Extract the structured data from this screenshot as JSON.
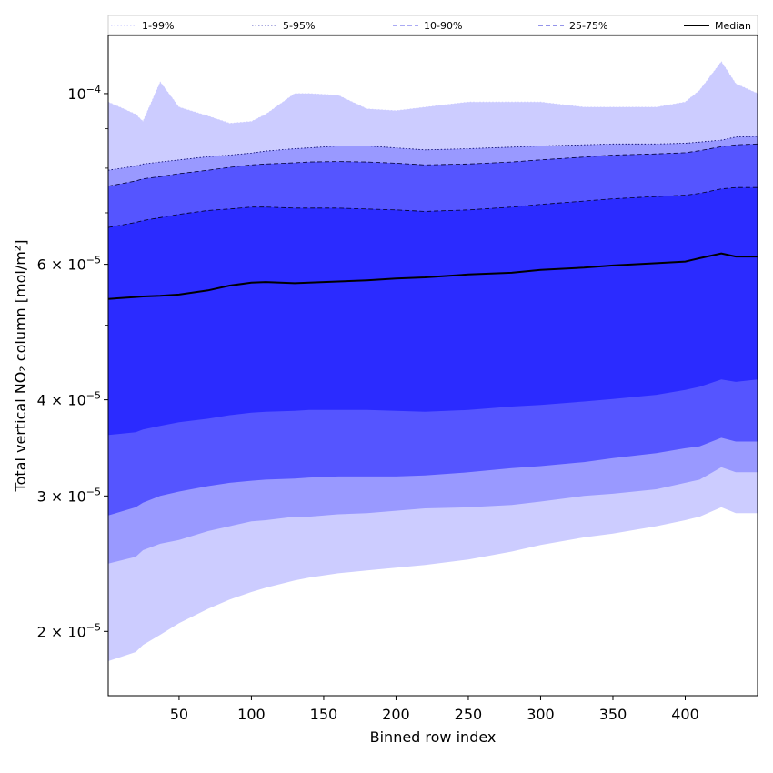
{
  "chart_data": {
    "type": "area",
    "xlabel": "Binned row index",
    "ylabel": "Total vertical NO₂ column [mol/m²]",
    "xlim": [
      1,
      450
    ],
    "ylim": [
      1.65e-05,
      0.000119
    ],
    "y_scale": "log",
    "x_ticks": [
      50,
      100,
      150,
      200,
      250,
      300,
      350,
      400
    ],
    "x_tick_labels": [
      "50",
      "100",
      "150",
      "200",
      "250",
      "300",
      "350",
      "400"
    ],
    "y_ticks": [
      {
        "value": 0.0001,
        "mantissa": "",
        "exponent": "−4",
        "label": "10^-4"
      },
      {
        "value": 6e-05,
        "mantissa": "6 × 10",
        "exponent": "−5",
        "label": "6x10^-5"
      },
      {
        "value": 4e-05,
        "mantissa": "4 × 10",
        "exponent": "−5",
        "label": "4x10^-5"
      },
      {
        "value": 3e-05,
        "mantissa": "3 × 10",
        "exponent": "−5",
        "label": "3x10^-5"
      },
      {
        "value": 2e-05,
        "mantissa": "2 × 10",
        "exponent": "−5",
        "label": "2x10^-5"
      }
    ],
    "x": [
      1,
      20,
      25,
      37,
      50,
      70,
      85,
      100,
      110,
      130,
      140,
      160,
      180,
      200,
      220,
      250,
      280,
      300,
      330,
      350,
      380,
      400,
      410,
      425,
      435,
      450
    ],
    "bands": [
      {
        "name": "1-99%",
        "color": "#ccccff",
        "line_color": "#ccccff",
        "line_style": "dotted",
        "lower": [
          1.83e-05,
          1.88e-05,
          1.92e-05,
          1.98e-05,
          2.05e-05,
          2.14e-05,
          2.2e-05,
          2.25e-05,
          2.28e-05,
          2.33e-05,
          2.35e-05,
          2.38e-05,
          2.4e-05,
          2.42e-05,
          2.44e-05,
          2.48e-05,
          2.54e-05,
          2.59e-05,
          2.65e-05,
          2.68e-05,
          2.74e-05,
          2.79e-05,
          2.82e-05,
          2.9e-05,
          2.85e-05,
          2.85e-05
        ],
        "upper": [
          9.75e-05,
          9.4e-05,
          9.2e-05,
          0.0001035,
          9.6e-05,
          9.35e-05,
          9.15e-05,
          9.2e-05,
          9.4e-05,
          0.0001,
          0.0001,
          9.95e-05,
          9.55e-05,
          9.5e-05,
          9.6e-05,
          9.75e-05,
          9.75e-05,
          9.75e-05,
          9.6e-05,
          9.6e-05,
          9.6e-05,
          9.75e-05,
          0.000101,
          0.00011,
          0.000103,
          0.0001
        ]
      },
      {
        "name": "5-95%",
        "color": "#9999ff",
        "line_color": "#000066",
        "line_style": "dotted",
        "lower": [
          2.45e-05,
          2.5e-05,
          2.55e-05,
          2.6e-05,
          2.63e-05,
          2.7e-05,
          2.74e-05,
          2.78e-05,
          2.79e-05,
          2.82e-05,
          2.82e-05,
          2.84e-05,
          2.85e-05,
          2.87e-05,
          2.89e-05,
          2.9e-05,
          2.92e-05,
          2.95e-05,
          3e-05,
          3.02e-05,
          3.06e-05,
          3.12e-05,
          3.15e-05,
          3.27e-05,
          3.22e-05,
          3.22e-05
        ],
        "upper": [
          7.95e-05,
          8.05e-05,
          8.1e-05,
          8.15e-05,
          8.2e-05,
          8.28e-05,
          8.32e-05,
          8.37e-05,
          8.42e-05,
          8.48e-05,
          8.5e-05,
          8.55e-05,
          8.55e-05,
          8.5e-05,
          8.45e-05,
          8.48e-05,
          8.52e-05,
          8.55e-05,
          8.58e-05,
          8.6e-05,
          8.6e-05,
          8.62e-05,
          8.65e-05,
          8.7e-05,
          8.78e-05,
          8.8e-05
        ]
      },
      {
        "name": "10-90%",
        "color": "#5555ff",
        "line_color": "#000033",
        "line_style": "dashed",
        "lower": [
          2.83e-05,
          2.9e-05,
          2.94e-05,
          3e-05,
          3.04e-05,
          3.09e-05,
          3.12e-05,
          3.14e-05,
          3.15e-05,
          3.16e-05,
          3.17e-05,
          3.18e-05,
          3.18e-05,
          3.18e-05,
          3.19e-05,
          3.22e-05,
          3.26e-05,
          3.28e-05,
          3.32e-05,
          3.36e-05,
          3.41e-05,
          3.46e-05,
          3.48e-05,
          3.57e-05,
          3.53e-05,
          3.53e-05
        ],
        "upper": [
          7.58e-05,
          7.7e-05,
          7.75e-05,
          7.8e-05,
          7.87e-05,
          7.95e-05,
          8.02e-05,
          8.08e-05,
          8.1e-05,
          8.13e-05,
          8.15e-05,
          8.16e-05,
          8.15e-05,
          8.12e-05,
          8.08e-05,
          8.1e-05,
          8.15e-05,
          8.2e-05,
          8.27e-05,
          8.32e-05,
          8.35e-05,
          8.38e-05,
          8.43e-05,
          8.53e-05,
          8.58e-05,
          8.6e-05
        ]
      },
      {
        "name": "25-75%",
        "color": "#2b2bff",
        "line_color": "#000022",
        "line_style": "dashed",
        "lower": [
          3.6e-05,
          3.63e-05,
          3.66e-05,
          3.7e-05,
          3.74e-05,
          3.78e-05,
          3.82e-05,
          3.85e-05,
          3.86e-05,
          3.87e-05,
          3.88e-05,
          3.88e-05,
          3.88e-05,
          3.87e-05,
          3.86e-05,
          3.88e-05,
          3.92e-05,
          3.94e-05,
          3.98e-05,
          4.01e-05,
          4.06e-05,
          4.12e-05,
          4.16e-05,
          4.25e-05,
          4.22e-05,
          4.25e-05
        ],
        "upper": [
          6.7e-05,
          6.8e-05,
          6.84e-05,
          6.9e-05,
          6.97e-05,
          7.05e-05,
          7.08e-05,
          7.12e-05,
          7.12e-05,
          7.1e-05,
          7.1e-05,
          7.1e-05,
          7.08e-05,
          7.06e-05,
          7.03e-05,
          7.06e-05,
          7.12e-05,
          7.18e-05,
          7.25e-05,
          7.3e-05,
          7.35e-05,
          7.38e-05,
          7.42e-05,
          7.52e-05,
          7.55e-05,
          7.55e-05
        ]
      }
    ],
    "median": {
      "name": "Median",
      "color": "#000000",
      "values": [
        5.41e-05,
        5.44e-05,
        5.45e-05,
        5.46e-05,
        5.48e-05,
        5.55e-05,
        5.63e-05,
        5.68e-05,
        5.69e-05,
        5.67e-05,
        5.68e-05,
        5.7e-05,
        5.72e-05,
        5.75e-05,
        5.77e-05,
        5.82e-05,
        5.85e-05,
        5.9e-05,
        5.94e-05,
        5.98e-05,
        6.02e-05,
        6.05e-05,
        6.11e-05,
        6.2e-05,
        6.14e-05,
        6.14e-05
      ]
    },
    "legend": {
      "placement": "top",
      "entries": [
        {
          "label": "1-99%",
          "color": "#ccccff",
          "style": "dotted"
        },
        {
          "label": "5-95%",
          "color": "#7777cc",
          "style": "dotted"
        },
        {
          "label": "10-90%",
          "color": "#7777ee",
          "style": "dashed"
        },
        {
          "label": "25-75%",
          "color": "#5555dd",
          "style": "dashed"
        },
        {
          "label": "Median",
          "color": "#000000",
          "style": "solid"
        }
      ]
    },
    "grid": false
  }
}
